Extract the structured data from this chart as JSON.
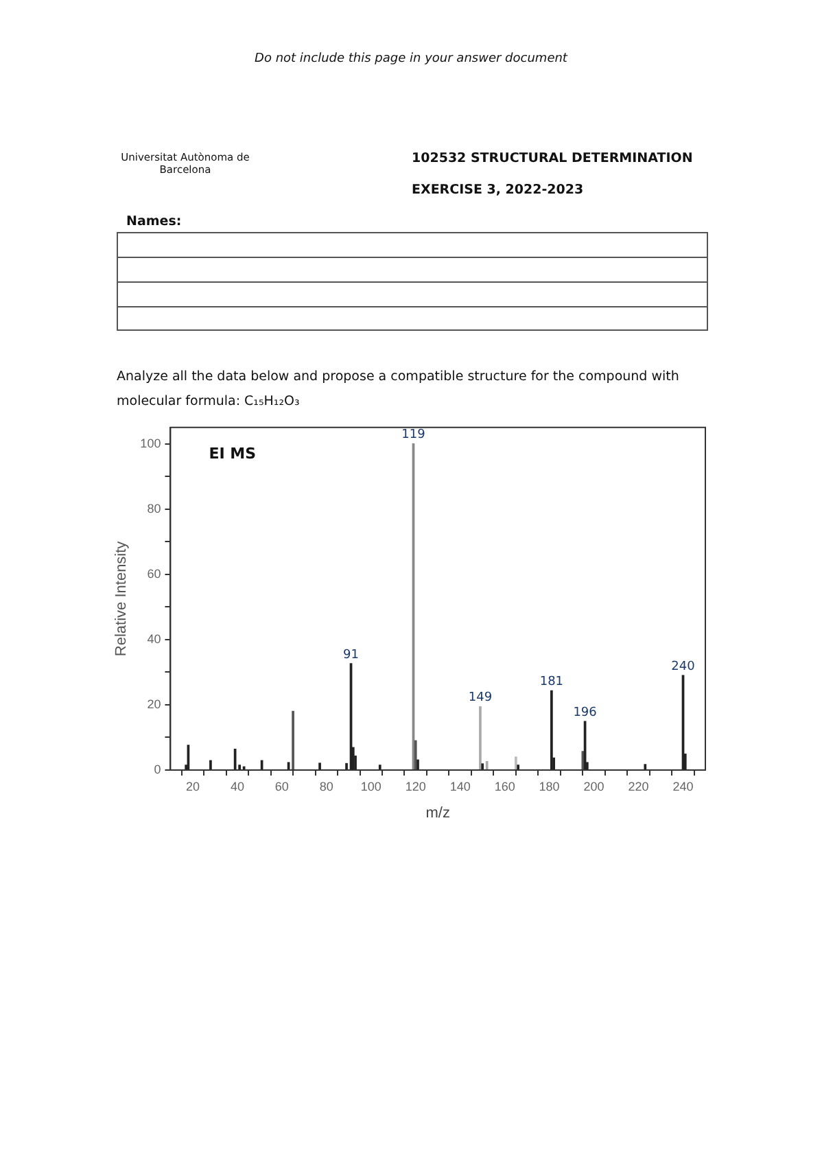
{
  "chart_data": {
    "type": "bar",
    "title": "102532 STRUCTURAL DETERMINATION",
    "subtitle": "EXERCISE 3, 2022-2023",
    "annotations": [
      "Do not include this page in your answer document",
      "Universitat Autònoma de Barcelona",
      "Names:",
      "Analyze all the data below and propose a compatible structure for the compound with molecular formula: C₁₅H₁₂O₃",
      "EI MS",
      {
        "text": "91",
        "x": 91,
        "y": 32.6
      },
      {
        "text": "119",
        "x": 119,
        "y": 100
      },
      {
        "text": "149",
        "x": 149,
        "y": 19.4
      },
      {
        "text": "181",
        "x": 181,
        "y": 24.3
      },
      {
        "text": "196",
        "x": 196,
        "y": 14.9
      },
      {
        "text": "240",
        "x": 240,
        "y": 29
      }
    ],
    "xlabel": "m/z",
    "ylabel": "Relative Intensity",
    "x": [
      17,
      18,
      28,
      39,
      41,
      43,
      51,
      63,
      65,
      77,
      89,
      91,
      92,
      93,
      104,
      119,
      120,
      121,
      149,
      150,
      152,
      165,
      166,
      181,
      182,
      195,
      196,
      197,
      223,
      240,
      241
    ],
    "values": [
      1.5,
      7.6,
      2.9,
      6.4,
      1.5,
      1,
      2.9,
      2.3,
      18,
      2.1,
      2,
      32.6,
      6.9,
      4.3,
      1.5,
      100,
      9,
      3.1,
      19.4,
      1.9,
      2.6,
      4,
      1.5,
      24.3,
      3.7,
      5.7,
      14.9,
      2.3,
      1.7,
      29,
      4.9
    ],
    "colors": [
      "#222222",
      "#222222",
      "#222222",
      "#222222",
      "#222222",
      "#222222",
      "#222222",
      "#222222",
      "#555555",
      "#222222",
      "#222222",
      "#222222",
      "#222222",
      "#222222",
      "#222222",
      "#888888",
      "#555555",
      "#222222",
      "#aaaaaa",
      "#222222",
      "#aaaaaa",
      "#bbbbbb",
      "#222222",
      "#222222",
      "#222222",
      "#555555",
      "#222222",
      "#222222",
      "#222222",
      "#222222",
      "#222222"
    ],
    "xlim": [
      10,
      250
    ],
    "xticks": [
      20,
      40,
      60,
      80,
      100,
      120,
      140,
      160,
      180,
      200,
      220,
      240
    ],
    "ylim": [
      0,
      105
    ],
    "yticks": [
      0,
      {
        "value": 10,
        "label": null
      },
      20,
      {
        "value": 30,
        "label": null
      },
      40,
      {
        "value": 50,
        "label": null
      },
      60,
      {
        "value": 70,
        "label": null
      },
      80,
      {
        "value": 90,
        "label": null
      },
      100
    ],
    "grid": false,
    "legend": false
  }
}
